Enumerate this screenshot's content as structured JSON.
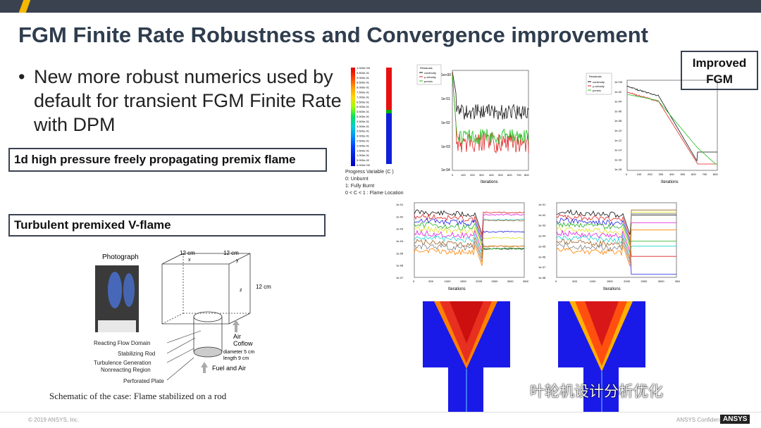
{
  "slide": {
    "title": "FGM Finite Rate Robustness and Convergence improvement",
    "bullet": "New more robust numerics used by default for transient FGM Finite Rate with DPM",
    "bullet_marker": "•",
    "label_1d": "1d high pressure freely propagating premix flame",
    "label_turb": "Turbulent premixed V-flame",
    "improved": [
      "Improved",
      "FGM"
    ]
  },
  "colorbar": {
    "ticks": [
      "1.000e+00",
      "9.500e-01",
      "9.000e-01",
      "8.500e-01",
      "8.000e-01",
      "7.500e-01",
      "7.000e-01",
      "6.500e-01",
      "6.000e-01",
      "5.500e-01",
      "5.000e-01",
      "4.500e-01",
      "4.000e-01",
      "3.500e-01",
      "3.000e-01",
      "2.500e-01",
      "2.000e-01",
      "1.500e-01",
      "1.000e-01",
      "5.000e-02",
      "0.000e+00"
    ],
    "legend": [
      "Progress Variable (C )",
      "0: Unburnt",
      "1: Fully Burnt",
      "0 < C < 1 : Flame Location"
    ]
  },
  "residual_chart_1": {
    "legend_title": "Residuals",
    "legend": [
      "continuity",
      "y-velocity",
      "premix"
    ],
    "yticks": [
      "1e+00",
      "1e-01",
      "1e-02",
      "1e-03",
      "1e-04"
    ],
    "xticks": [
      "0",
      "100",
      "200",
      "300",
      "400",
      "500",
      "600",
      "700",
      "800"
    ],
    "xlabel": "Iterations"
  },
  "residual_chart_2": {
    "legend_title": "Residuals",
    "legend": [
      "continuity",
      "y-velocity",
      "premix"
    ],
    "yticks": [
      "1e+00",
      "1e-02",
      "1e-04",
      "1e-06",
      "1e-08",
      "1e-10",
      "1e-12",
      "1e-14",
      "1e-16",
      "1e-18"
    ],
    "xticks": [
      "0",
      "100",
      "200",
      "300",
      "400",
      "500",
      "600",
      "700",
      "800"
    ],
    "xlabel": "Iterations"
  },
  "residual_chart_3": {
    "yticks": [
      "1e-01",
      "1e-02",
      "1e-03",
      "1e-04",
      "1e-05",
      "1e-06",
      "1e-07"
    ],
    "xticks": [
      "0",
      "500",
      "1000",
      "1500",
      "2000",
      "2500",
      "3000",
      "3500"
    ],
    "xlabel": "Iterations"
  },
  "residual_chart_4": {
    "yticks": [
      "1e-01",
      "1e-02",
      "1e-03",
      "1e-04",
      "1e-05",
      "1e-06",
      "1e-07",
      "1e-08"
    ],
    "xticks": [
      "0",
      "500",
      "1000",
      "1500",
      "2000",
      "2500",
      "3000",
      "3500"
    ],
    "xlabel": "Iterations"
  },
  "schematic": {
    "photo_label": "Photograph",
    "dim_x": "12 cm",
    "dim_y": "12 cm",
    "dim_z": "12 cm",
    "x": "x",
    "y": "y",
    "z": "z",
    "air": "Air",
    "coflow": "Coflow",
    "diameter": "diameter 5 cm",
    "length": "length 9 cm",
    "fuel": "Fuel and Air",
    "labels": [
      "Reacting Flow Domain",
      "Stabilizing Rod",
      "Turbulence Generation",
      "Nonreacting Region",
      "Perforated Plate"
    ],
    "caption": "Schematic of the case: Flame stabilized on a rod"
  },
  "footer": {
    "copyright": "© 2019 ANSYS, Inc.",
    "confidential": "ANSYS Confidential",
    "logo": "ANSYS"
  },
  "watermark": "叶轮机设计分析优化",
  "colors": {
    "accent": "#f5b800",
    "bar": "#3a4250",
    "title": "#2f3d4e"
  }
}
